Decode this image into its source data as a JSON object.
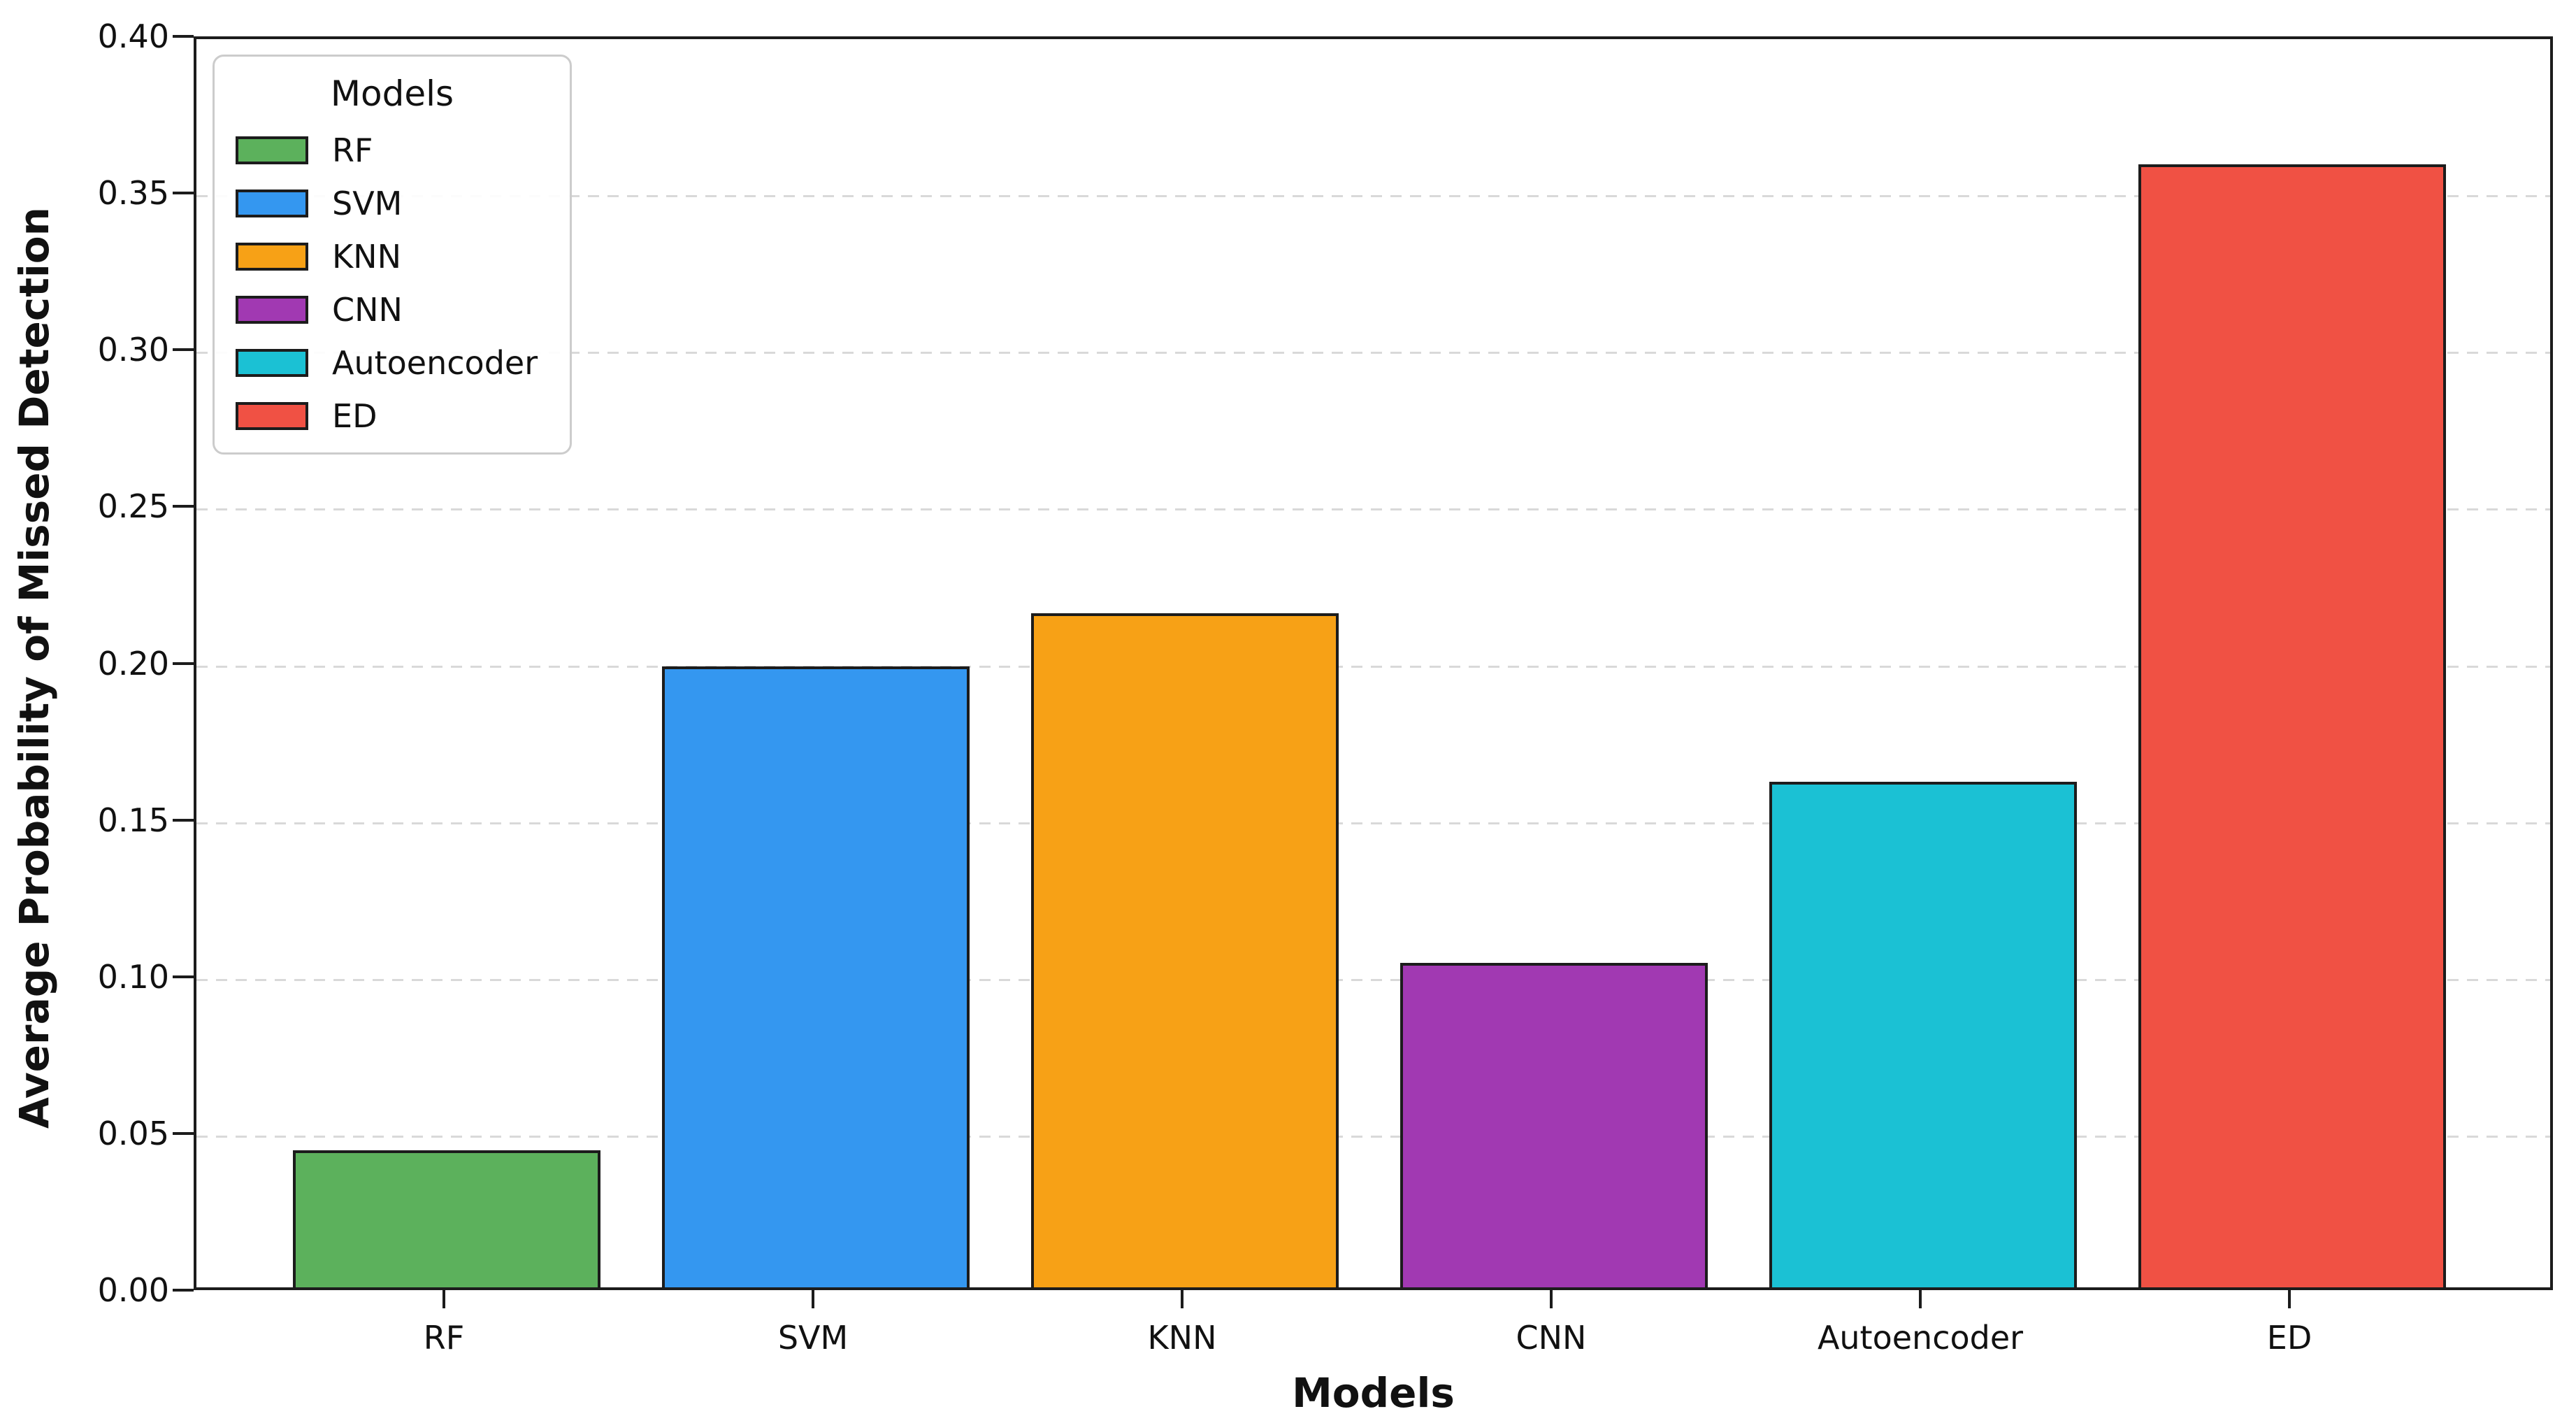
{
  "chart_data": {
    "type": "bar",
    "title": "",
    "xlabel": "Models",
    "ylabel": "Average Probability of Missed Detection",
    "categories": [
      "RF",
      "SVM",
      "KNN",
      "CNN",
      "Autoencoder",
      "ED"
    ],
    "values": [
      0.044,
      0.199,
      0.216,
      0.104,
      0.162,
      0.36
    ],
    "colors": [
      "#5CB15C",
      "#3497F0",
      "#F7A116",
      "#A139B2",
      "#1BC1D4",
      "#F05144"
    ],
    "bar_edge_color": "#1c1c1c",
    "ylim": [
      0.0,
      0.4
    ],
    "ytick_labels": [
      "0.00",
      "0.05",
      "0.10",
      "0.15",
      "0.20",
      "0.25",
      "0.30",
      "0.35",
      "0.40"
    ],
    "grid": "horizontal-dashed",
    "grid_color": "#d9d9d9",
    "legend": {
      "title": "Models",
      "position": "upper-left",
      "entries": [
        "RF",
        "SVM",
        "KNN",
        "CNN",
        "Autoencoder",
        "ED"
      ]
    }
  }
}
